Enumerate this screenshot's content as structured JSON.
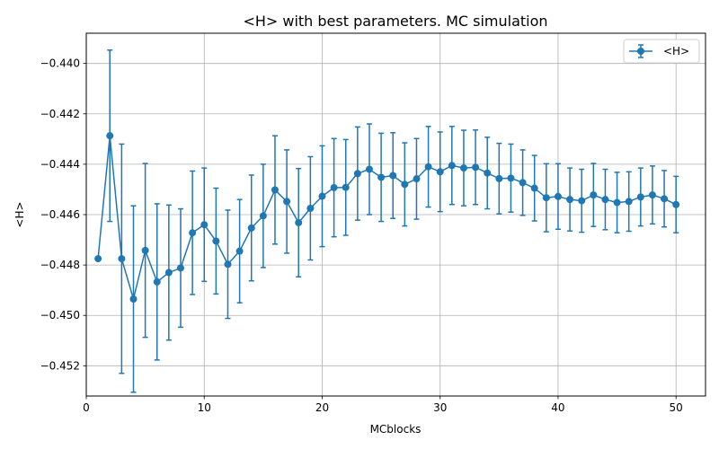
{
  "chart_data": {
    "type": "line",
    "title": "<H> with best parameters. MC simulation",
    "xlabel": "MCblocks",
    "ylabel": "<H>",
    "xlim": [
      0.0,
      52.5
    ],
    "ylim": [
      -0.4532,
      -0.4388
    ],
    "x_ticks": [
      0,
      10,
      20,
      30,
      40,
      50
    ],
    "x_tick_labels": [
      "0",
      "10",
      "20",
      "30",
      "40",
      "50"
    ],
    "y_ticks": [
      -0.452,
      -0.45,
      -0.448,
      -0.446,
      -0.444,
      -0.442,
      -0.44
    ],
    "y_tick_labels": [
      "−0.452",
      "−0.450",
      "−0.448",
      "−0.446",
      "−0.444",
      "−0.442",
      "−0.440"
    ],
    "grid": true,
    "legend": {
      "position": "top-right",
      "entries": [
        "<H>"
      ]
    },
    "series": [
      {
        "name": "<H>",
        "color": "#1f77b4",
        "marker": "circle",
        "errorbars": true,
        "x": [
          1,
          2,
          3,
          4,
          5,
          6,
          7,
          8,
          9,
          10,
          11,
          12,
          13,
          14,
          15,
          16,
          17,
          18,
          19,
          20,
          21,
          22,
          23,
          24,
          25,
          26,
          27,
          28,
          29,
          30,
          31,
          32,
          33,
          34,
          35,
          36,
          37,
          38,
          39,
          40,
          41,
          42,
          43,
          44,
          45,
          46,
          47,
          48,
          49,
          50
        ],
        "y": [
          -0.44775,
          -0.44287,
          -0.44775,
          -0.44935,
          -0.44742,
          -0.44867,
          -0.4483,
          -0.44812,
          -0.44672,
          -0.4464,
          -0.44705,
          -0.44797,
          -0.44745,
          -0.44653,
          -0.44605,
          -0.44502,
          -0.44548,
          -0.44632,
          -0.44575,
          -0.44527,
          -0.44493,
          -0.44492,
          -0.44437,
          -0.4442,
          -0.44452,
          -0.44445,
          -0.4448,
          -0.44458,
          -0.4441,
          -0.4443,
          -0.44405,
          -0.44415,
          -0.44412,
          -0.44435,
          -0.44457,
          -0.44455,
          -0.44473,
          -0.44495,
          -0.44533,
          -0.44528,
          -0.4454,
          -0.44545,
          -0.44522,
          -0.4454,
          -0.44552,
          -0.44548,
          -0.4453,
          -0.44522,
          -0.44537,
          -0.4456
        ],
        "err": [
          0.0,
          0.0034,
          0.00455,
          0.0037,
          0.00345,
          0.0031,
          0.00268,
          0.00235,
          0.00245,
          0.00225,
          0.0021,
          0.00215,
          0.00205,
          0.0021,
          0.00205,
          0.00215,
          0.00205,
          0.00215,
          0.00205,
          0.002,
          0.00195,
          0.0019,
          0.00185,
          0.0018,
          0.00175,
          0.0017,
          0.00165,
          0.0016,
          0.0016,
          0.00158,
          0.00155,
          0.0015,
          0.00148,
          0.00142,
          0.0014,
          0.00135,
          0.0013,
          0.0013,
          0.00135,
          0.0013,
          0.00125,
          0.00125,
          0.00125,
          0.0012,
          0.0012,
          0.00118,
          0.00115,
          0.00115,
          0.00112,
          0.00112
        ]
      }
    ]
  }
}
